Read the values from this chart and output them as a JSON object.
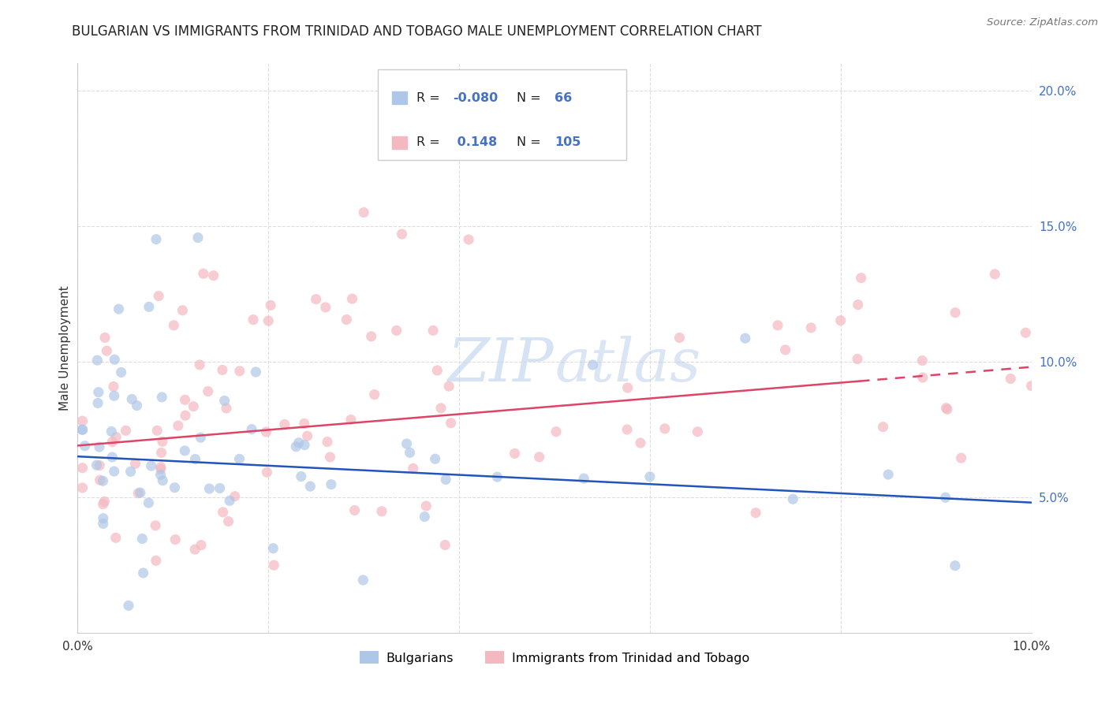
{
  "title": "BULGARIAN VS IMMIGRANTS FROM TRINIDAD AND TOBAGO MALE UNEMPLOYMENT CORRELATION CHART",
  "source": "Source: ZipAtlas.com",
  "ylabel": "Male Unemployment",
  "xlim": [
    0.0,
    0.1
  ],
  "ylim": [
    0.0,
    0.21
  ],
  "bulgarian_color": "#aec6e8",
  "tt_color": "#f4b8c1",
  "bulgarian_edge_color": "#7badd4",
  "tt_edge_color": "#e891a3",
  "bulgarian_line_color": "#2255bb",
  "tt_line_color": "#dd4466",
  "R_bulgarian": -0.08,
  "N_bulgarian": 66,
  "R_tt": 0.148,
  "N_tt": 105,
  "legend_label_bulgarian": "Bulgarians",
  "legend_label_tt": "Immigrants from Trinidad and Tobago",
  "title_fontsize": 12,
  "axis_label_fontsize": 11,
  "tick_fontsize": 11,
  "bg_color": "#ffffff",
  "grid_color": "#cccccc",
  "scatter_alpha": 0.7,
  "scatter_size": 90,
  "blue_text_color": "#4472c4",
  "source_color": "#777777",
  "watermark_color": "#d0dff0"
}
